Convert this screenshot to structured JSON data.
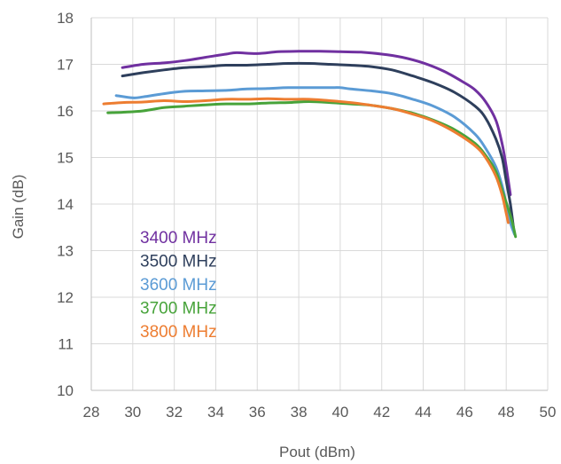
{
  "chart_data": {
    "type": "line",
    "xlabel": "Pout (dBm)",
    "ylabel": "Gain (dB)",
    "xlim": [
      28,
      50
    ],
    "ylim": [
      10,
      18
    ],
    "xticks": [
      28,
      30,
      32,
      34,
      36,
      38,
      40,
      42,
      44,
      46,
      48,
      50
    ],
    "yticks": [
      10,
      11,
      12,
      13,
      14,
      15,
      16,
      17,
      18
    ],
    "grid": true,
    "legend_position": "bottom-left inside plot",
    "series": [
      {
        "name": "3400 MHz",
        "color": "#7030A0",
        "points": [
          [
            29.5,
            16.93
          ],
          [
            30.5,
            17.0
          ],
          [
            31.5,
            17.03
          ],
          [
            32.5,
            17.08
          ],
          [
            33.5,
            17.15
          ],
          [
            34.5,
            17.22
          ],
          [
            35.0,
            17.25
          ],
          [
            36.0,
            17.23
          ],
          [
            37.0,
            17.27
          ],
          [
            38.0,
            17.28
          ],
          [
            39.0,
            17.28
          ],
          [
            40.0,
            17.27
          ],
          [
            41.0,
            17.26
          ],
          [
            42.0,
            17.22
          ],
          [
            43.0,
            17.15
          ],
          [
            44.0,
            17.03
          ],
          [
            45.0,
            16.85
          ],
          [
            46.0,
            16.6
          ],
          [
            46.5,
            16.45
          ],
          [
            47.0,
            16.2
          ],
          [
            47.5,
            15.8
          ],
          [
            47.8,
            15.3
          ],
          [
            48.0,
            14.8
          ],
          [
            48.2,
            14.2
          ]
        ]
      },
      {
        "name": "3500 MHz",
        "color": "#2E3F5C",
        "points": [
          [
            29.5,
            16.75
          ],
          [
            30.5,
            16.82
          ],
          [
            31.5,
            16.88
          ],
          [
            32.5,
            16.93
          ],
          [
            33.5,
            16.95
          ],
          [
            34.5,
            16.98
          ],
          [
            35.5,
            16.98
          ],
          [
            36.5,
            17.0
          ],
          [
            37.5,
            17.02
          ],
          [
            38.5,
            17.02
          ],
          [
            39.5,
            17.0
          ],
          [
            40.5,
            16.98
          ],
          [
            41.5,
            16.95
          ],
          [
            42.5,
            16.88
          ],
          [
            43.5,
            16.75
          ],
          [
            44.5,
            16.6
          ],
          [
            45.5,
            16.4
          ],
          [
            46.5,
            16.1
          ],
          [
            47.0,
            15.85
          ],
          [
            47.5,
            15.4
          ],
          [
            47.8,
            15.0
          ],
          [
            48.0,
            14.5
          ],
          [
            48.2,
            14.0
          ],
          [
            48.35,
            13.5
          ]
        ]
      },
      {
        "name": "3600 MHz",
        "color": "#5B9BD5",
        "points": [
          [
            29.2,
            16.33
          ],
          [
            30.0,
            16.28
          ],
          [
            30.5,
            16.3
          ],
          [
            31.5,
            16.37
          ],
          [
            32.5,
            16.42
          ],
          [
            33.5,
            16.43
          ],
          [
            34.5,
            16.44
          ],
          [
            35.5,
            16.47
          ],
          [
            36.5,
            16.48
          ],
          [
            37.5,
            16.5
          ],
          [
            38.5,
            16.5
          ],
          [
            39.5,
            16.5
          ],
          [
            40.0,
            16.5
          ],
          [
            40.5,
            16.47
          ],
          [
            41.5,
            16.43
          ],
          [
            42.5,
            16.37
          ],
          [
            43.5,
            16.25
          ],
          [
            44.5,
            16.1
          ],
          [
            45.5,
            15.87
          ],
          [
            46.5,
            15.5
          ],
          [
            47.0,
            15.2
          ],
          [
            47.5,
            14.8
          ],
          [
            47.8,
            14.4
          ],
          [
            48.0,
            14.0
          ],
          [
            48.2,
            13.6
          ],
          [
            48.4,
            13.35
          ]
        ]
      },
      {
        "name": "3700 MHz",
        "color": "#47A33A",
        "points": [
          [
            28.8,
            15.96
          ],
          [
            29.5,
            15.97
          ],
          [
            30.5,
            16.0
          ],
          [
            31.5,
            16.07
          ],
          [
            32.5,
            16.1
          ],
          [
            33.5,
            16.13
          ],
          [
            34.5,
            16.15
          ],
          [
            35.5,
            16.15
          ],
          [
            36.5,
            16.17
          ],
          [
            37.5,
            16.18
          ],
          [
            38.5,
            16.2
          ],
          [
            39.5,
            16.18
          ],
          [
            40.5,
            16.15
          ],
          [
            41.5,
            16.12
          ],
          [
            42.5,
            16.05
          ],
          [
            43.5,
            15.95
          ],
          [
            44.5,
            15.8
          ],
          [
            45.5,
            15.6
          ],
          [
            46.5,
            15.3
          ],
          [
            47.0,
            15.05
          ],
          [
            47.5,
            14.7
          ],
          [
            47.8,
            14.3
          ],
          [
            48.1,
            13.9
          ],
          [
            48.3,
            13.6
          ],
          [
            48.45,
            13.3
          ]
        ]
      },
      {
        "name": "3800 MHz",
        "color": "#ED7D31",
        "points": [
          [
            28.6,
            16.15
          ],
          [
            29.5,
            16.18
          ],
          [
            30.5,
            16.19
          ],
          [
            31.5,
            16.22
          ],
          [
            32.5,
            16.2
          ],
          [
            33.5,
            16.22
          ],
          [
            34.5,
            16.25
          ],
          [
            35.5,
            16.25
          ],
          [
            36.5,
            16.26
          ],
          [
            37.5,
            16.25
          ],
          [
            38.5,
            16.25
          ],
          [
            39.5,
            16.22
          ],
          [
            40.5,
            16.18
          ],
          [
            41.5,
            16.12
          ],
          [
            42.5,
            16.05
          ],
          [
            43.5,
            15.93
          ],
          [
            44.5,
            15.78
          ],
          [
            45.5,
            15.55
          ],
          [
            46.5,
            15.25
          ],
          [
            47.0,
            15.0
          ],
          [
            47.5,
            14.6
          ],
          [
            47.8,
            14.2
          ],
          [
            48.0,
            13.8
          ],
          [
            48.1,
            13.6
          ]
        ]
      }
    ]
  }
}
